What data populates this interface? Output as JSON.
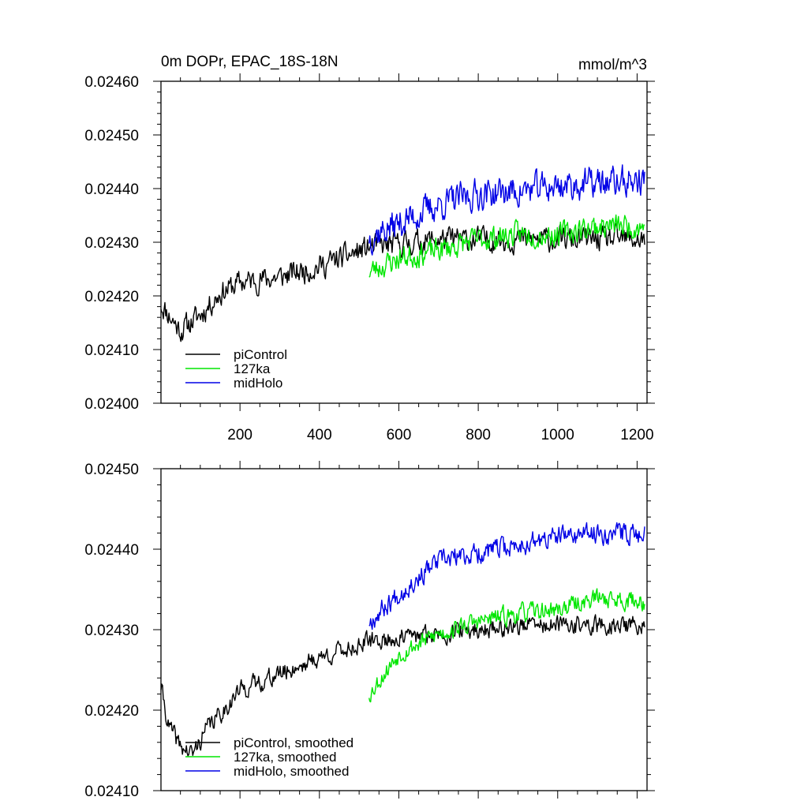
{
  "colors": {
    "piControl": "#000000",
    "127ka": "#00e600",
    "midHolo": "#0000e6",
    "axis": "#000000"
  },
  "chart_data": [
    {
      "type": "line",
      "title": "0m DOPr, EPAC_18S-18N",
      "units": "mmol/m^3",
      "xlim": [
        1,
        1225
      ],
      "ylim": [
        0.024,
        0.0246
      ],
      "xticks": [
        200,
        400,
        600,
        800,
        1000,
        1200
      ],
      "xtick_labels": [
        "200",
        "400",
        "600",
        "800",
        "1000",
        "1200"
      ],
      "yticks": [
        0.024,
        0.0241,
        0.0242,
        0.0243,
        0.0244,
        0.0245,
        0.0246
      ],
      "ytick_labels": [
        "0.02400",
        "0.02410",
        "0.02420",
        "0.02430",
        "0.02440",
        "0.02450",
        "0.02460"
      ],
      "legend": [
        "piControl",
        "127ka",
        "midHolo"
      ],
      "series": [
        {
          "name": "piControl",
          "key": "piControl",
          "x_range": [
            1,
            1220
          ],
          "trend": [
            [
              1,
              0.024185
            ],
            [
              50,
              0.024135
            ],
            [
              100,
              0.024165
            ],
            [
              150,
              0.024205
            ],
            [
              200,
              0.024225
            ],
            [
              300,
              0.024235
            ],
            [
              400,
              0.024255
            ],
            [
              525,
              0.02429
            ],
            [
              700,
              0.024305
            ],
            [
              900,
              0.024305
            ],
            [
              1220,
              0.024305
            ]
          ],
          "amplitude": 3.5e-05,
          "seed": 11
        },
        {
          "name": "127ka",
          "key": "127ka",
          "x_range": [
            525,
            1220
          ],
          "trend": [
            [
              525,
              0.024245
            ],
            [
              600,
              0.02427
            ],
            [
              700,
              0.024285
            ],
            [
              800,
              0.024305
            ],
            [
              900,
              0.024315
            ],
            [
              1000,
              0.024315
            ],
            [
              1100,
              0.02433
            ],
            [
              1220,
              0.02433
            ]
          ],
          "amplitude": 3.5e-05,
          "seed": 23
        },
        {
          "name": "midHolo",
          "key": "midHolo",
          "x_range": [
            525,
            1220
          ],
          "trend": [
            [
              525,
              0.02431
            ],
            [
              600,
              0.024335
            ],
            [
              700,
              0.02437
            ],
            [
              800,
              0.02439
            ],
            [
              900,
              0.024395
            ],
            [
              1000,
              0.024405
            ],
            [
              1100,
              0.02441
            ],
            [
              1220,
              0.024415
            ]
          ],
          "amplitude": 4.5e-05,
          "seed": 37
        }
      ]
    },
    {
      "type": "line",
      "xlim": [
        1,
        1225
      ],
      "ylim": [
        0.0241,
        0.0245
      ],
      "xticks": [
        200,
        400,
        600,
        800,
        1000,
        1200
      ],
      "yticks": [
        0.0241,
        0.0242,
        0.0243,
        0.0244,
        0.0245
      ],
      "ytick_labels": [
        "0.02410",
        "0.02420",
        "0.02430",
        "0.02440",
        "0.02450"
      ],
      "legend": [
        "piControl, smoothed",
        "127ka, smoothed",
        "midHolo, smoothed"
      ],
      "series": [
        {
          "name": "piControl, smoothed",
          "key": "piControl",
          "x_range": [
            1,
            1220
          ],
          "trend": [
            [
              1,
              0.02423
            ],
            [
              20,
              0.02418
            ],
            [
              50,
              0.024155
            ],
            [
              80,
              0.024145
            ],
            [
              120,
              0.02418
            ],
            [
              150,
              0.024195
            ],
            [
              200,
              0.024225
            ],
            [
              300,
              0.024245
            ],
            [
              400,
              0.024265
            ],
            [
              525,
              0.024285
            ],
            [
              700,
              0.024295
            ],
            [
              900,
              0.024305
            ],
            [
              1220,
              0.024305
            ]
          ],
          "amplitude": 1.8e-05,
          "seed": 41
        },
        {
          "name": "127ka, smoothed",
          "key": "127ka",
          "x_range": [
            525,
            1220
          ],
          "trend": [
            [
              525,
              0.02422
            ],
            [
              600,
              0.02427
            ],
            [
              700,
              0.024295
            ],
            [
              800,
              0.02431
            ],
            [
              900,
              0.02432
            ],
            [
              1000,
              0.024325
            ],
            [
              1100,
              0.02434
            ],
            [
              1220,
              0.024335
            ]
          ],
          "amplitude": 1.8e-05,
          "seed": 53
        },
        {
          "name": "midHolo, smoothed",
          "key": "midHolo",
          "x_range": [
            525,
            1220
          ],
          "trend": [
            [
              525,
              0.02431
            ],
            [
              600,
              0.024345
            ],
            [
              700,
              0.024385
            ],
            [
              800,
              0.024395
            ],
            [
              900,
              0.024405
            ],
            [
              1000,
              0.024415
            ],
            [
              1100,
              0.02442
            ],
            [
              1220,
              0.02442
            ]
          ],
          "amplitude": 2e-05,
          "seed": 67
        }
      ]
    }
  ]
}
